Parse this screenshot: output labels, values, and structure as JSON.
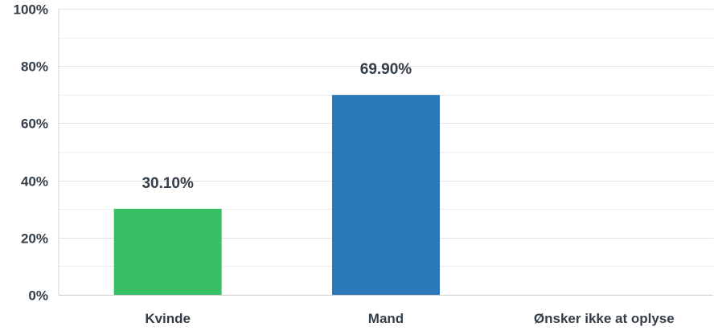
{
  "chart_data": {
    "type": "bar",
    "categories": [
      "Kvinde",
      "Mand",
      "Ønsker ikke at oplyse"
    ],
    "values": [
      30.1,
      69.9,
      0
    ],
    "data_labels": [
      "30.10%",
      "69.90%",
      ""
    ],
    "colors": [
      "#37bf63",
      "#2b79b8",
      "#2b79b8"
    ],
    "ylim": [
      0,
      100
    ],
    "yticks": [
      0,
      20,
      40,
      60,
      80,
      100
    ],
    "ytick_labels": [
      "0%",
      "20%",
      "40%",
      "60%",
      "80%",
      "100%"
    ],
    "minor_ticks": [
      10,
      30,
      50,
      70,
      90
    ],
    "grid": true,
    "title": "",
    "xlabel": "",
    "ylabel": ""
  }
}
